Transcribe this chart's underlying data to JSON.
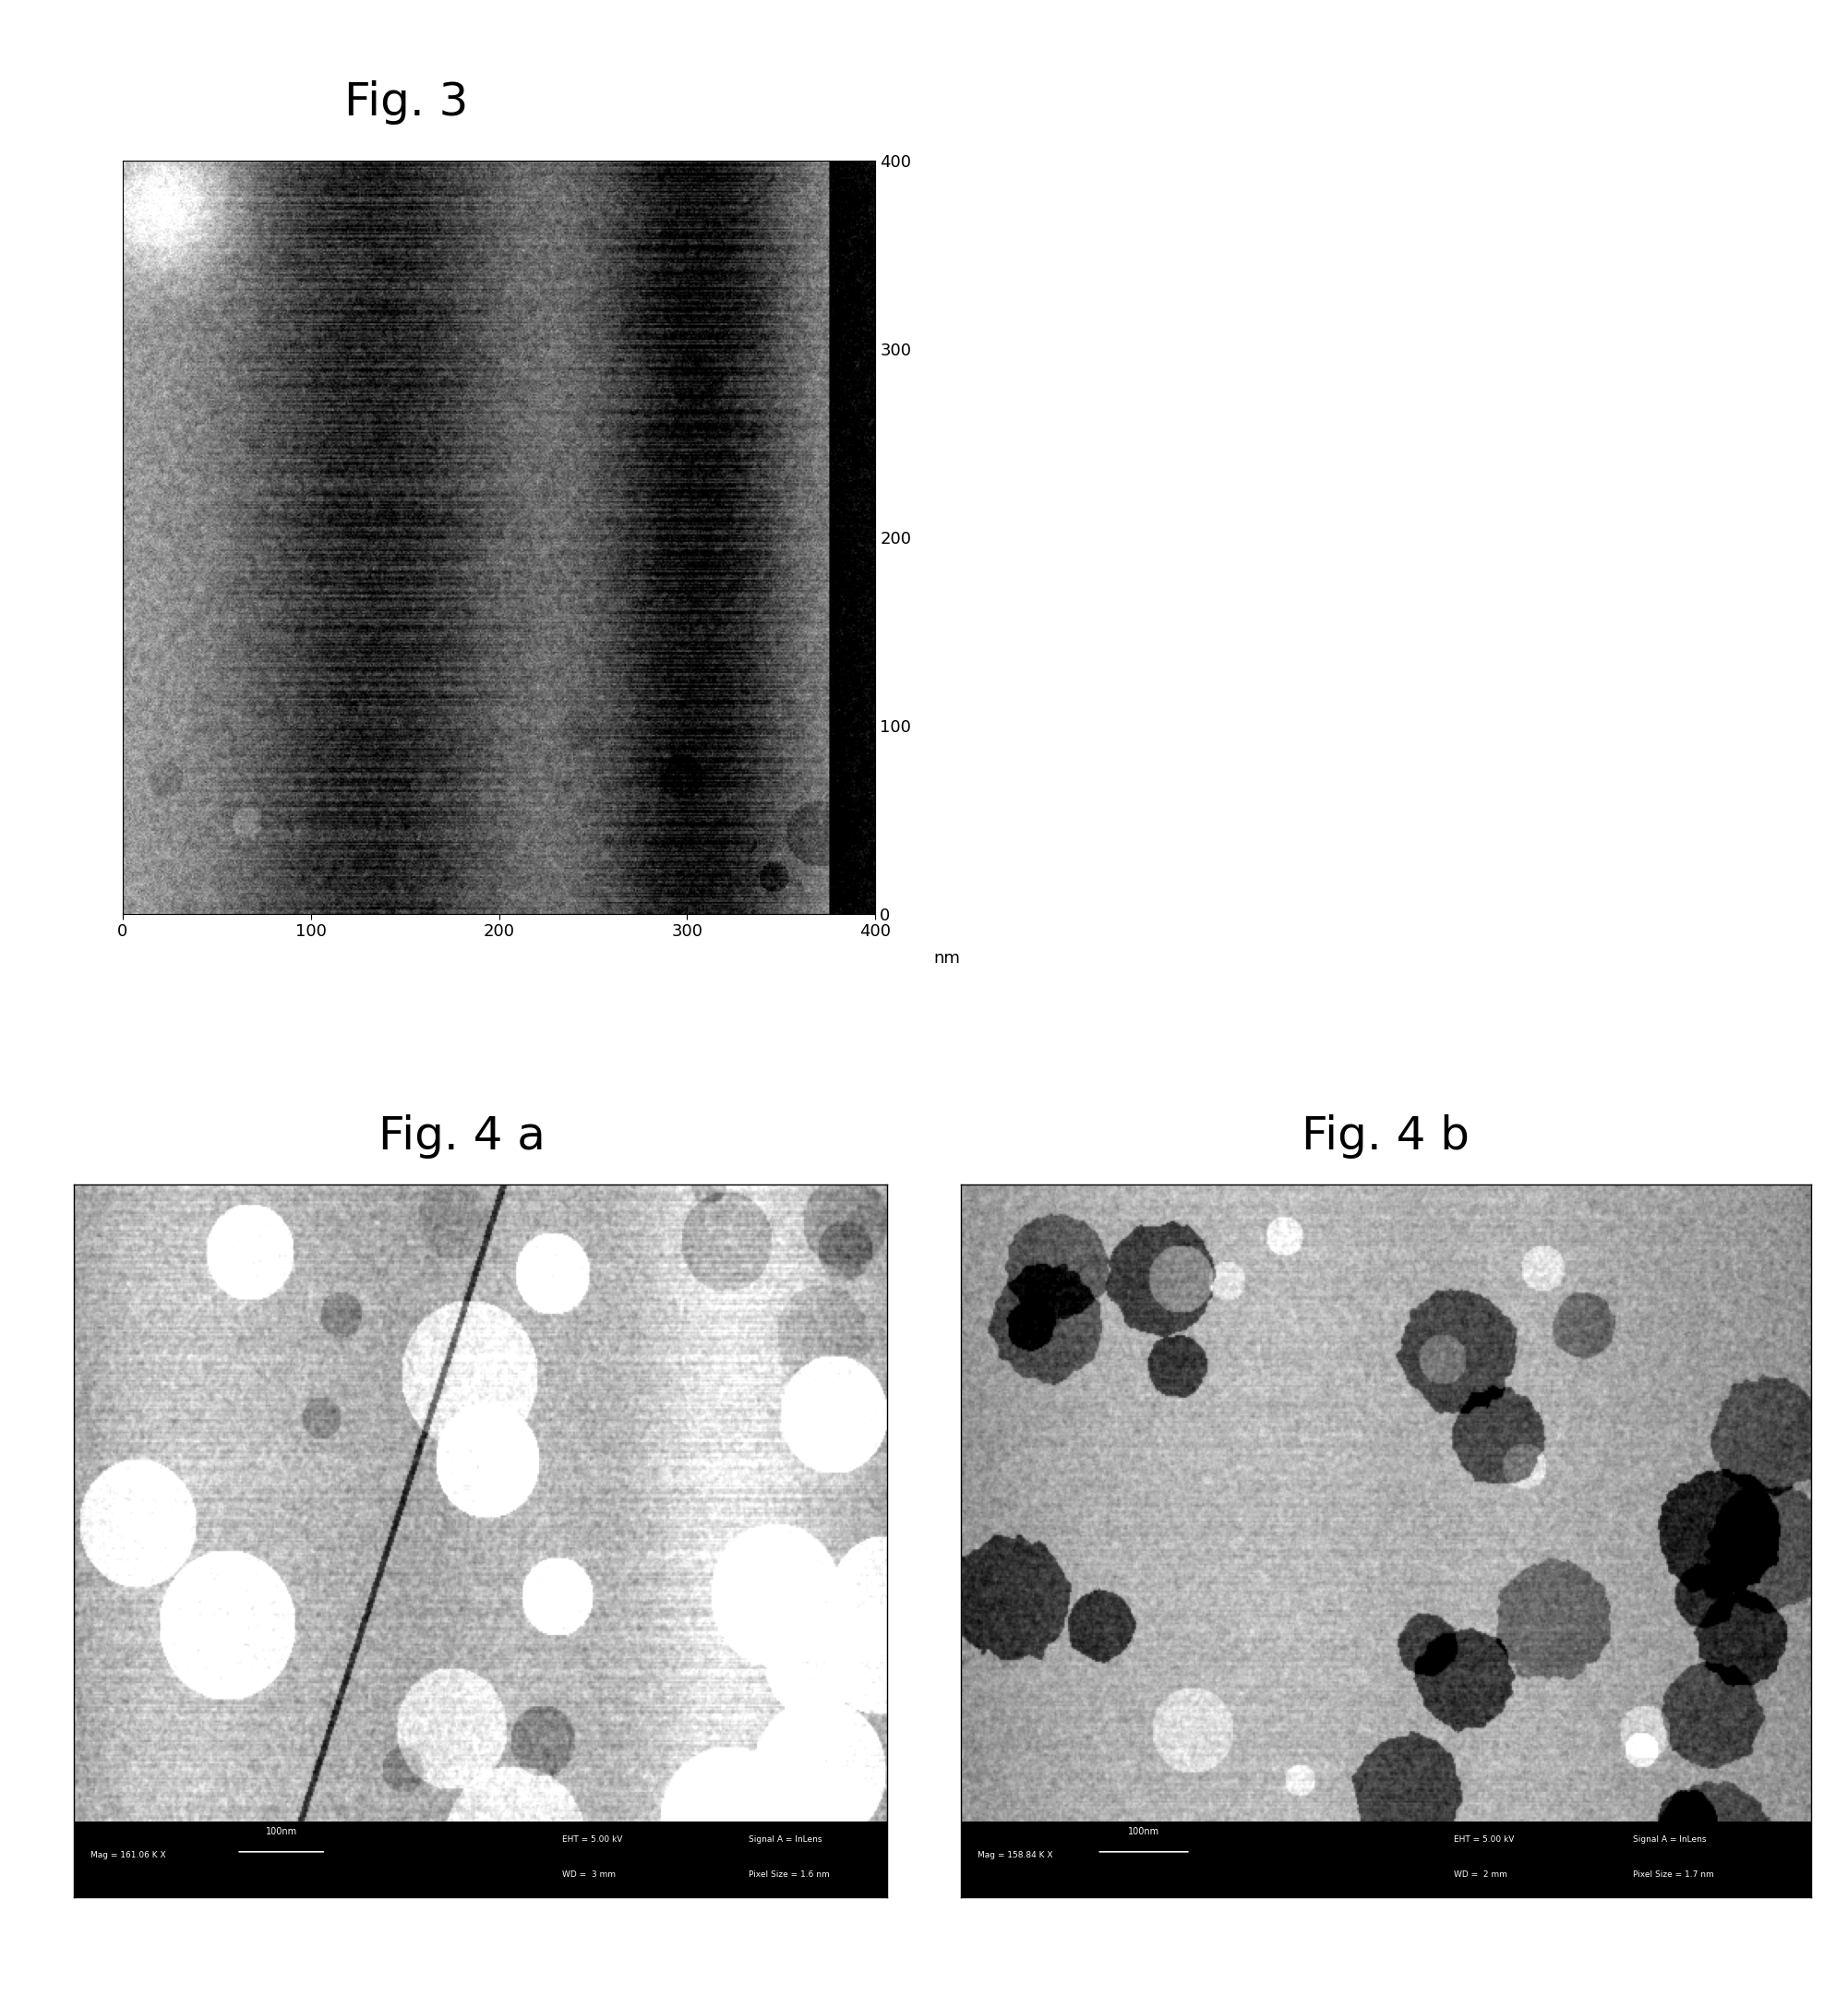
{
  "fig3_title": "Fig. 3",
  "fig4a_title": "Fig. 4 a",
  "fig4b_title": "Fig. 4 b",
  "title_fontsize": 36,
  "background_color": "#ffffff",
  "fig3_xlabel": "nm",
  "fig3_xticks": [
    0,
    100,
    200,
    300,
    400
  ],
  "fig3_yticks": [
    0,
    100,
    200,
    300,
    400
  ],
  "fig4a_bar_text": "100nm",
  "fig4a_mag": "Mag = 161.06 K X",
  "fig4a_eht": "EHT = 5.00 kV",
  "fig4a_wd": "WD =  3 mm",
  "fig4a_signal": "Signal A = InLens",
  "fig4a_pixel": "Pixel Size = 1.6 nm",
  "fig4b_bar_text": "100nm",
  "fig4b_mag": "Mag = 158.84 K X",
  "fig4b_eht": "EHT = 5.00 kV",
  "fig4b_wd": "WD =  2 mm",
  "fig4b_signal": "Signal A = InLens",
  "fig4b_pixel": "Pixel Size = 1.7 nm",
  "fig3_seed": 42,
  "fig4a_seed": 77,
  "fig4b_seed": 99
}
